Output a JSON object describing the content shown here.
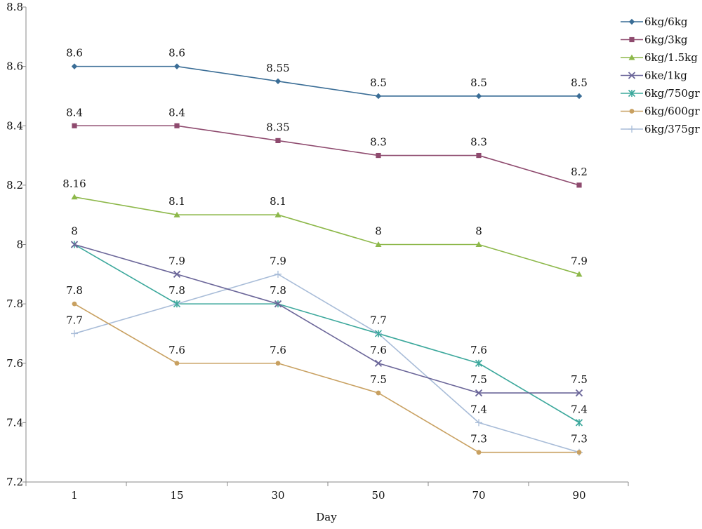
{
  "chart_data": {
    "type": "line",
    "categories": [
      "1",
      "15",
      "30",
      "50",
      "70",
      "90"
    ],
    "xlabel": "Day",
    "ylabel": "",
    "ylim": [
      7.2,
      8.8
    ],
    "ytick_labels": [
      "7.2",
      "7.4",
      "7.6",
      "7.8",
      "8",
      "8.2",
      "8.4",
      "8.6",
      "8.8"
    ],
    "grid": false,
    "legend_position": "right",
    "series": [
      {
        "name": "6kg/6kg",
        "values": [
          8.6,
          8.6,
          8.55,
          8.5,
          8.5,
          8.5
        ],
        "labels": [
          "8.6",
          "8.6",
          "8.55",
          "8.5",
          "8.5",
          "8.5"
        ],
        "color": "#3A6D96",
        "marker": "diamond"
      },
      {
        "name": "6kg/3kg",
        "values": [
          8.4,
          8.4,
          8.35,
          8.3,
          8.3,
          8.2
        ],
        "labels": [
          "8.4",
          "8.4",
          "8.35",
          "8.3",
          "8.3",
          "8.2"
        ],
        "color": "#8E4A6E",
        "marker": "square"
      },
      {
        "name": "6kg/1.5kg",
        "values": [
          8.16,
          8.1,
          8.1,
          8.0,
          8.0,
          7.9
        ],
        "labels": [
          "8.16",
          "8.1",
          "8.1",
          "8",
          "8",
          "7.9"
        ],
        "color": "#8DB84A",
        "marker": "triangle"
      },
      {
        "name": "6ke/1kg",
        "values": [
          8.0,
          7.9,
          7.8,
          7.6,
          7.5,
          7.5
        ],
        "labels": [
          "8",
          "7.9",
          "",
          "7.6",
          "7.5",
          "7.5"
        ],
        "color": "#6B6699",
        "marker": "x"
      },
      {
        "name": "6kg/750gr",
        "values": [
          8.0,
          7.8,
          7.8,
          7.7,
          7.6,
          7.4
        ],
        "labels": [
          "",
          "7.8",
          "7.8",
          "7.7",
          "7.6",
          "7.4"
        ],
        "color": "#3CA89C",
        "marker": "asterisk"
      },
      {
        "name": "6kg/600gr",
        "values": [
          7.8,
          7.6,
          7.6,
          7.5,
          7.3,
          7.3
        ],
        "labels": [
          "7.8",
          "7.6",
          "7.6",
          "7.5",
          "7.3",
          "7.3"
        ],
        "color": "#C8A060",
        "marker": "circle"
      },
      {
        "name": "6kg/375gr",
        "values": [
          7.7,
          7.8,
          7.9,
          7.7,
          7.4,
          7.3
        ],
        "labels": [
          "7.7",
          "",
          "7.9",
          "",
          "7.4",
          ""
        ],
        "color": "#A8BCD8",
        "marker": "plus"
      }
    ]
  }
}
